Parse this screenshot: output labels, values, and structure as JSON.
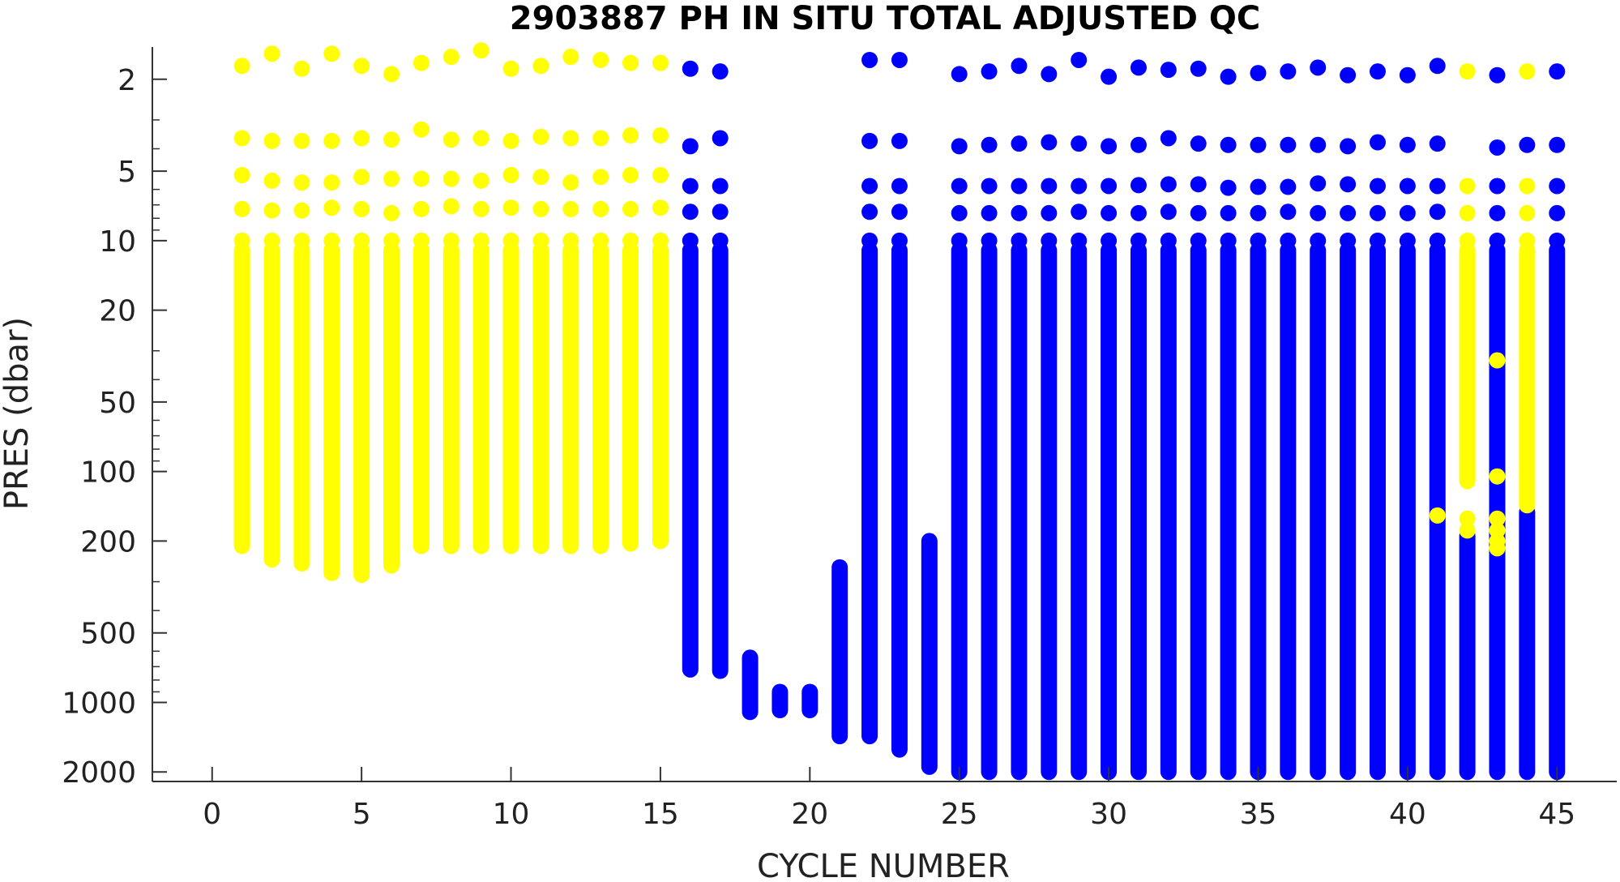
{
  "chart_data": {
    "type": "scatter",
    "title": "2903887  PH IN SITU TOTAL ADJUSTED QC",
    "xlabel": "CYCLE NUMBER",
    "ylabel": "PRES (dbar)",
    "xlim": [
      -2,
      47
    ],
    "ylim": [
      2200,
      1.45
    ],
    "y_scale": "log",
    "y_reversed": true,
    "xticks": [
      0,
      5,
      10,
      15,
      20,
      25,
      30,
      35,
      40,
      45
    ],
    "xtick_labels": [
      "0",
      "5",
      "10",
      "15",
      "20",
      "25",
      "30",
      "35",
      "40",
      "45"
    ],
    "yticks": [
      2,
      5,
      10,
      20,
      50,
      100,
      200,
      500,
      1000,
      2000
    ],
    "ytick_labels": [
      "2",
      "5",
      "10",
      "20",
      "50",
      "100",
      "200",
      "500",
      "1000",
      "2000"
    ],
    "grid": false,
    "colors": {
      "yellow": "#ffff00",
      "blue": "#0000ff"
    },
    "profiles": [
      {
        "cycle": 1,
        "color": "yellow",
        "top_points": [
          1.75,
          3.6,
          5.2,
          7.3,
          10
        ],
        "column": [
          11,
          210
        ]
      },
      {
        "cycle": 2,
        "color": "yellow",
        "top_points": [
          1.55,
          3.7,
          5.5,
          7.4,
          10
        ],
        "column": [
          11,
          240
        ]
      },
      {
        "cycle": 3,
        "color": "yellow",
        "top_points": [
          1.8,
          3.7,
          5.6,
          7.4,
          10
        ],
        "column": [
          11,
          250
        ]
      },
      {
        "cycle": 4,
        "color": "yellow",
        "top_points": [
          1.55,
          3.7,
          5.6,
          7.2,
          10
        ],
        "column": [
          11,
          275
        ]
      },
      {
        "cycle": 5,
        "color": "yellow",
        "top_points": [
          1.75,
          3.6,
          5.3,
          7.3,
          10
        ],
        "column": [
          11,
          280
        ]
      },
      {
        "cycle": 6,
        "color": "yellow",
        "top_points": [
          1.9,
          3.65,
          5.4,
          7.6,
          10
        ],
        "column": [
          11,
          255
        ]
      },
      {
        "cycle": 7,
        "color": "yellow",
        "top_points": [
          1.7,
          3.3,
          5.4,
          7.3,
          10
        ],
        "column": [
          11,
          210
        ]
      },
      {
        "cycle": 8,
        "color": "yellow",
        "top_points": [
          1.6,
          3.65,
          5.4,
          7.1,
          10
        ],
        "column": [
          11,
          210
        ]
      },
      {
        "cycle": 9,
        "color": "yellow",
        "top_points": [
          1.5,
          3.6,
          5.5,
          7.3,
          10
        ],
        "column": [
          11,
          210
        ]
      },
      {
        "cycle": 10,
        "color": "yellow",
        "top_points": [
          1.8,
          3.7,
          5.2,
          7.2,
          10
        ],
        "column": [
          11,
          210
        ]
      },
      {
        "cycle": 11,
        "color": "yellow",
        "top_points": [
          1.75,
          3.55,
          5.3,
          7.3,
          10
        ],
        "column": [
          11,
          210
        ]
      },
      {
        "cycle": 12,
        "color": "yellow",
        "top_points": [
          1.6,
          3.6,
          5.6,
          7.3,
          10
        ],
        "column": [
          11,
          210
        ]
      },
      {
        "cycle": 13,
        "color": "yellow",
        "top_points": [
          1.65,
          3.6,
          5.3,
          7.3,
          10
        ],
        "column": [
          11,
          210
        ]
      },
      {
        "cycle": 14,
        "color": "yellow",
        "top_points": [
          1.7,
          3.5,
          5.2,
          7.3,
          10
        ],
        "column": [
          11,
          205
        ]
      },
      {
        "cycle": 15,
        "color": "yellow",
        "top_points": [
          1.7,
          3.5,
          5.2,
          7.2,
          10
        ],
        "column": [
          11,
          200
        ]
      },
      {
        "cycle": 16,
        "color": "blue",
        "top_points": [
          1.8,
          3.9,
          5.8,
          7.5,
          10
        ],
        "column": [
          11,
          720
        ]
      },
      {
        "cycle": 17,
        "color": "blue",
        "top_points": [
          1.85,
          3.6,
          5.8,
          7.5,
          10
        ],
        "column": [
          11,
          730
        ]
      },
      {
        "cycle": 18,
        "color": "blue",
        "top_points": [],
        "column": [
          640,
          1100
        ]
      },
      {
        "cycle": 19,
        "color": "blue",
        "top_points": [],
        "column": [
          900,
          1080
        ]
      },
      {
        "cycle": 20,
        "color": "blue",
        "top_points": [],
        "column": [
          900,
          1080
        ]
      },
      {
        "cycle": 21,
        "color": "blue",
        "top_points": [],
        "column": [
          260,
          1400
        ]
      },
      {
        "cycle": 22,
        "color": "blue",
        "top_points": [
          1.65,
          3.7,
          5.8,
          7.5,
          10
        ],
        "column": [
          11,
          1400
        ]
      },
      {
        "cycle": 23,
        "color": "blue",
        "top_points": [
          1.65,
          3.7,
          5.8,
          7.5,
          10
        ],
        "column": [
          11,
          1600
        ]
      },
      {
        "cycle": 24,
        "color": "blue",
        "top_points": [],
        "column": [
          200,
          1900
        ]
      },
      {
        "cycle": 25,
        "color": "blue",
        "top_points": [
          1.9,
          3.9,
          5.8,
          7.6,
          10
        ],
        "column": [
          11,
          2000
        ]
      },
      {
        "cycle": 26,
        "color": "blue",
        "top_points": [
          1.85,
          3.85,
          5.8,
          7.6,
          10
        ],
        "column": [
          11,
          2000
        ]
      },
      {
        "cycle": 27,
        "color": "blue",
        "top_points": [
          1.75,
          3.8,
          5.8,
          7.6,
          10
        ],
        "column": [
          11,
          2000
        ]
      },
      {
        "cycle": 28,
        "color": "blue",
        "top_points": [
          1.9,
          3.75,
          5.8,
          7.6,
          10
        ],
        "column": [
          11,
          2000
        ]
      },
      {
        "cycle": 29,
        "color": "blue",
        "top_points": [
          1.65,
          3.8,
          5.8,
          7.5,
          10
        ],
        "column": [
          11,
          2000
        ]
      },
      {
        "cycle": 30,
        "color": "blue",
        "top_points": [
          1.95,
          3.9,
          5.8,
          7.6,
          10
        ],
        "column": [
          11,
          2000
        ]
      },
      {
        "cycle": 31,
        "color": "blue",
        "top_points": [
          1.78,
          3.85,
          5.75,
          7.6,
          10
        ],
        "column": [
          11,
          2000
        ]
      },
      {
        "cycle": 32,
        "color": "blue",
        "top_points": [
          1.82,
          3.6,
          5.7,
          7.5,
          10
        ],
        "column": [
          11,
          2000
        ]
      },
      {
        "cycle": 33,
        "color": "blue",
        "top_points": [
          1.8,
          3.8,
          5.7,
          7.6,
          10
        ],
        "column": [
          11,
          2000
        ]
      },
      {
        "cycle": 34,
        "color": "blue",
        "top_points": [
          1.95,
          3.85,
          5.9,
          7.6,
          10
        ],
        "column": [
          11,
          2000
        ]
      },
      {
        "cycle": 35,
        "color": "blue",
        "top_points": [
          1.88,
          3.85,
          5.85,
          7.6,
          10
        ],
        "column": [
          11,
          2000
        ]
      },
      {
        "cycle": 36,
        "color": "blue",
        "top_points": [
          1.85,
          3.85,
          5.85,
          7.5,
          10
        ],
        "column": [
          11,
          2000
        ]
      },
      {
        "cycle": 37,
        "color": "blue",
        "top_points": [
          1.78,
          3.85,
          5.65,
          7.6,
          10
        ],
        "column": [
          11,
          2000
        ]
      },
      {
        "cycle": 38,
        "color": "blue",
        "top_points": [
          1.92,
          3.9,
          5.7,
          7.6,
          10
        ],
        "column": [
          11,
          2000
        ]
      },
      {
        "cycle": 39,
        "color": "blue",
        "top_points": [
          1.85,
          3.75,
          5.8,
          7.6,
          10
        ],
        "column": [
          11,
          2000
        ]
      },
      {
        "cycle": 40,
        "color": "blue",
        "top_points": [
          1.92,
          3.85,
          5.8,
          7.6,
          10
        ],
        "column": [
          11,
          2000
        ]
      },
      {
        "cycle": 41,
        "color": "blue",
        "top_points": [
          1.75,
          3.8,
          5.8,
          7.5,
          10
        ],
        "column": [
          11,
          2000
        ]
      },
      {
        "cycle": 42,
        "color": "blue",
        "top_points": [],
        "column": [
          190,
          2000
        ]
      },
      {
        "cycle": 43,
        "color": "blue",
        "top_points": [
          1.92,
          3.95,
          5.8,
          7.6,
          10
        ],
        "column": [
          11,
          2000
        ]
      },
      {
        "cycle": 44,
        "color": "blue",
        "top_points": [
          3.85
        ],
        "column": [
          150,
          2000
        ]
      },
      {
        "cycle": 45,
        "color": "blue",
        "top_points": [
          1.85,
          3.85,
          5.8,
          7.6,
          10
        ],
        "column": [
          11,
          2000
        ]
      }
    ],
    "overlays": [
      {
        "cycle": 41,
        "color": "yellow",
        "points": [
          155
        ]
      },
      {
        "cycle": 42,
        "color": "yellow",
        "points": [
          1.85,
          5.8,
          7.6,
          10,
          160,
          180
        ],
        "column": [
          11,
          110
        ]
      },
      {
        "cycle": 43,
        "color": "yellow",
        "points": [
          33,
          105,
          160,
          180,
          200,
          215
        ]
      },
      {
        "cycle": 44,
        "color": "yellow",
        "points": [
          1.85,
          5.8,
          7.6,
          10
        ],
        "column": [
          11,
          140
        ]
      }
    ]
  }
}
